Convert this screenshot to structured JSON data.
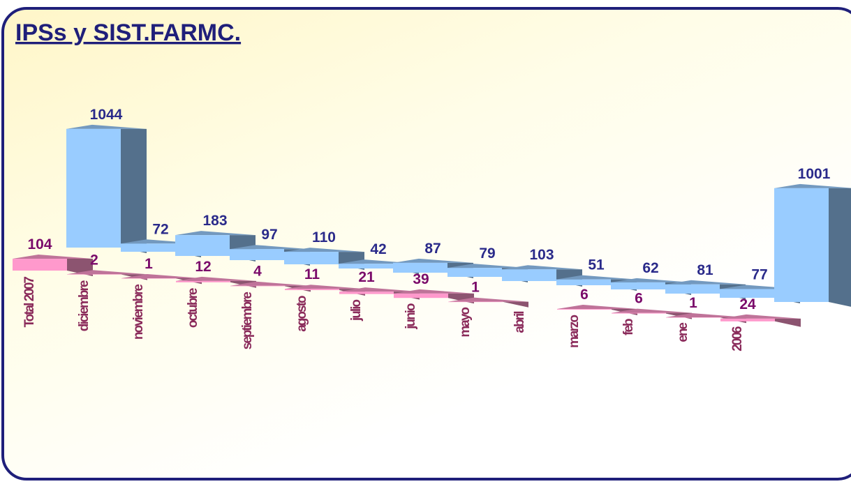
{
  "chart_data": {
    "type": "bar3d",
    "title": "IPSs y SIST.FARMC.",
    "categories": [
      "Total 2007",
      "diciembre",
      "noviembre",
      "octubre",
      "septiembre",
      "agosto",
      "julio",
      "junio",
      "mayo",
      "abril",
      "marzo",
      "feb",
      "ene",
      "2006"
    ],
    "series": [
      {
        "color": "#ff99cc",
        "values": [
          104,
          2,
          1,
          12,
          4,
          11,
          21,
          39,
          1,
          null,
          6,
          6,
          1,
          24
        ]
      },
      {
        "color": "#99ccff",
        "values": [
          1044,
          72,
          183,
          97,
          110,
          42,
          87,
          79,
          103,
          51,
          62,
          81,
          77,
          1001
        ]
      }
    ]
  }
}
